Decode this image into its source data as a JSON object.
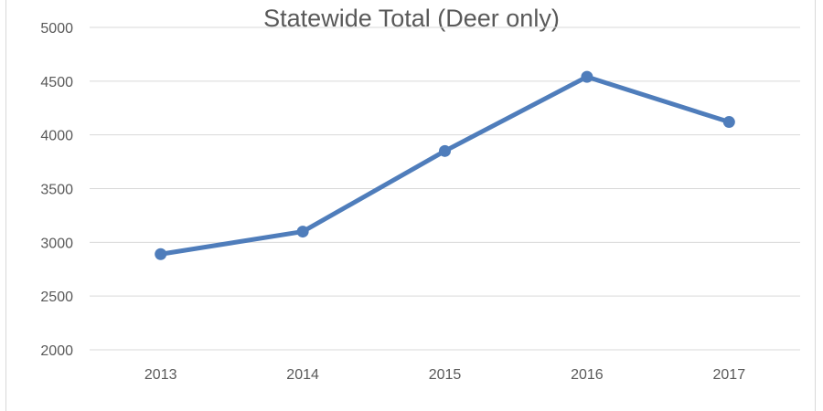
{
  "chart_data": {
    "type": "line",
    "title": "Statewide Total (Deer only)",
    "xlabel": "",
    "ylabel": "",
    "categories": [
      "2013",
      "2014",
      "2015",
      "2016",
      "2017"
    ],
    "series": [
      {
        "values": [
          2890,
          3100,
          3850,
          4540,
          4120
        ]
      }
    ],
    "ylim": [
      2000,
      5000
    ],
    "yticks": [
      2000,
      2500,
      3000,
      3500,
      4000,
      4500,
      5000
    ],
    "grid": true,
    "legend": "none",
    "colors": {
      "line": "#4f7dbb",
      "grid": "#d9d9d9",
      "text": "#595959"
    }
  }
}
